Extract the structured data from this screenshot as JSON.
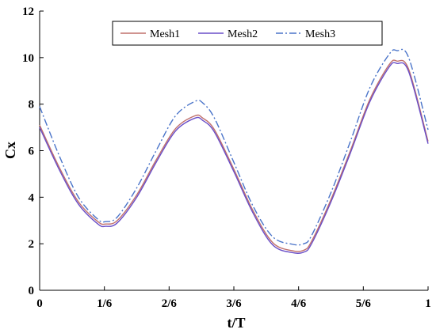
{
  "chart_data": {
    "type": "line",
    "xlabel": "t/T",
    "ylabel": "Cx",
    "xlim": [
      0,
      1
    ],
    "ylim": [
      0,
      12
    ],
    "x_ticks": [
      0,
      0.1667,
      0.3333,
      0.5,
      0.6667,
      0.8333,
      1
    ],
    "x_tick_labels": [
      "0",
      "1/6",
      "2/6",
      "3/6",
      "4/6",
      "5/6",
      "1"
    ],
    "y_ticks": [
      0,
      2,
      4,
      6,
      8,
      10,
      12
    ],
    "y_tick_labels": [
      "0",
      "2",
      "4",
      "6",
      "8",
      "10",
      "12"
    ],
    "grid": false,
    "legend_position": "top",
    "x": [
      0,
      0.05,
      0.1,
      0.15,
      0.17,
      0.2,
      0.25,
      0.3,
      0.35,
      0.4,
      0.42,
      0.45,
      0.5,
      0.55,
      0.6,
      0.65,
      0.68,
      0.7,
      0.75,
      0.8,
      0.85,
      0.9,
      0.92,
      0.95,
      1.0
    ],
    "series": [
      {
        "name": "Mesh1",
        "color": "#c0706c",
        "dash": "solid",
        "values": [
          7.1,
          5.3,
          3.8,
          2.95,
          2.85,
          3.0,
          4.1,
          5.6,
          6.95,
          7.5,
          7.4,
          6.9,
          5.2,
          3.4,
          2.05,
          1.7,
          1.72,
          2.1,
          3.9,
          6.0,
          8.2,
          9.7,
          9.85,
          9.5,
          6.4
        ]
      },
      {
        "name": "Mesh2",
        "color": "#6a4fc8",
        "dash": "solid",
        "values": [
          7.0,
          5.2,
          3.7,
          2.85,
          2.75,
          2.9,
          4.0,
          5.5,
          6.85,
          7.4,
          7.3,
          6.8,
          5.1,
          3.3,
          1.95,
          1.62,
          1.64,
          2.0,
          3.8,
          5.9,
          8.1,
          9.6,
          9.75,
          9.4,
          6.3
        ]
      },
      {
        "name": "Mesh3",
        "color": "#4a74c9",
        "dash": "dashdot",
        "values": [
          7.9,
          5.8,
          4.0,
          3.05,
          2.95,
          3.15,
          4.4,
          6.0,
          7.5,
          8.12,
          8.05,
          7.4,
          5.5,
          3.6,
          2.3,
          1.98,
          2.0,
          2.35,
          4.2,
          6.4,
          8.7,
          10.15,
          10.3,
          10.0,
          6.9
        ]
      }
    ]
  }
}
